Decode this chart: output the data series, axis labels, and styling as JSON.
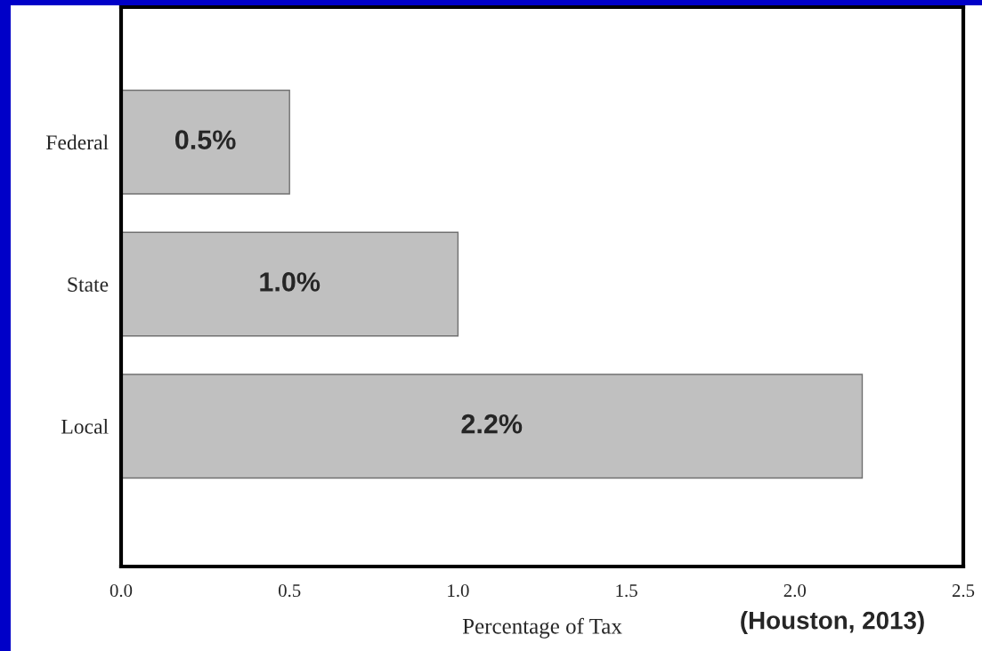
{
  "chart_data": {
    "type": "bar",
    "orientation": "horizontal",
    "xlabel": "Percentage of Tax",
    "categories": [
      "Federal",
      "State",
      "Local"
    ],
    "values": [
      0.5,
      1.0,
      2.2
    ],
    "color": "#c0c0c0",
    "value_labels": [
      "0.5%",
      "1.0%",
      "2.2%"
    ],
    "xlim": [
      0.0,
      2.5
    ],
    "xticks": [
      {
        "value": 0.0,
        "label": "0.0"
      },
      0.5,
      {
        "value": 1.0,
        "label": "1.0"
      },
      1.5,
      {
        "value": 2.0,
        "label": "2.0"
      },
      2.5
    ],
    "grid": false,
    "legend": false,
    "annotations": [
      "(Houston, 2013)"
    ]
  }
}
